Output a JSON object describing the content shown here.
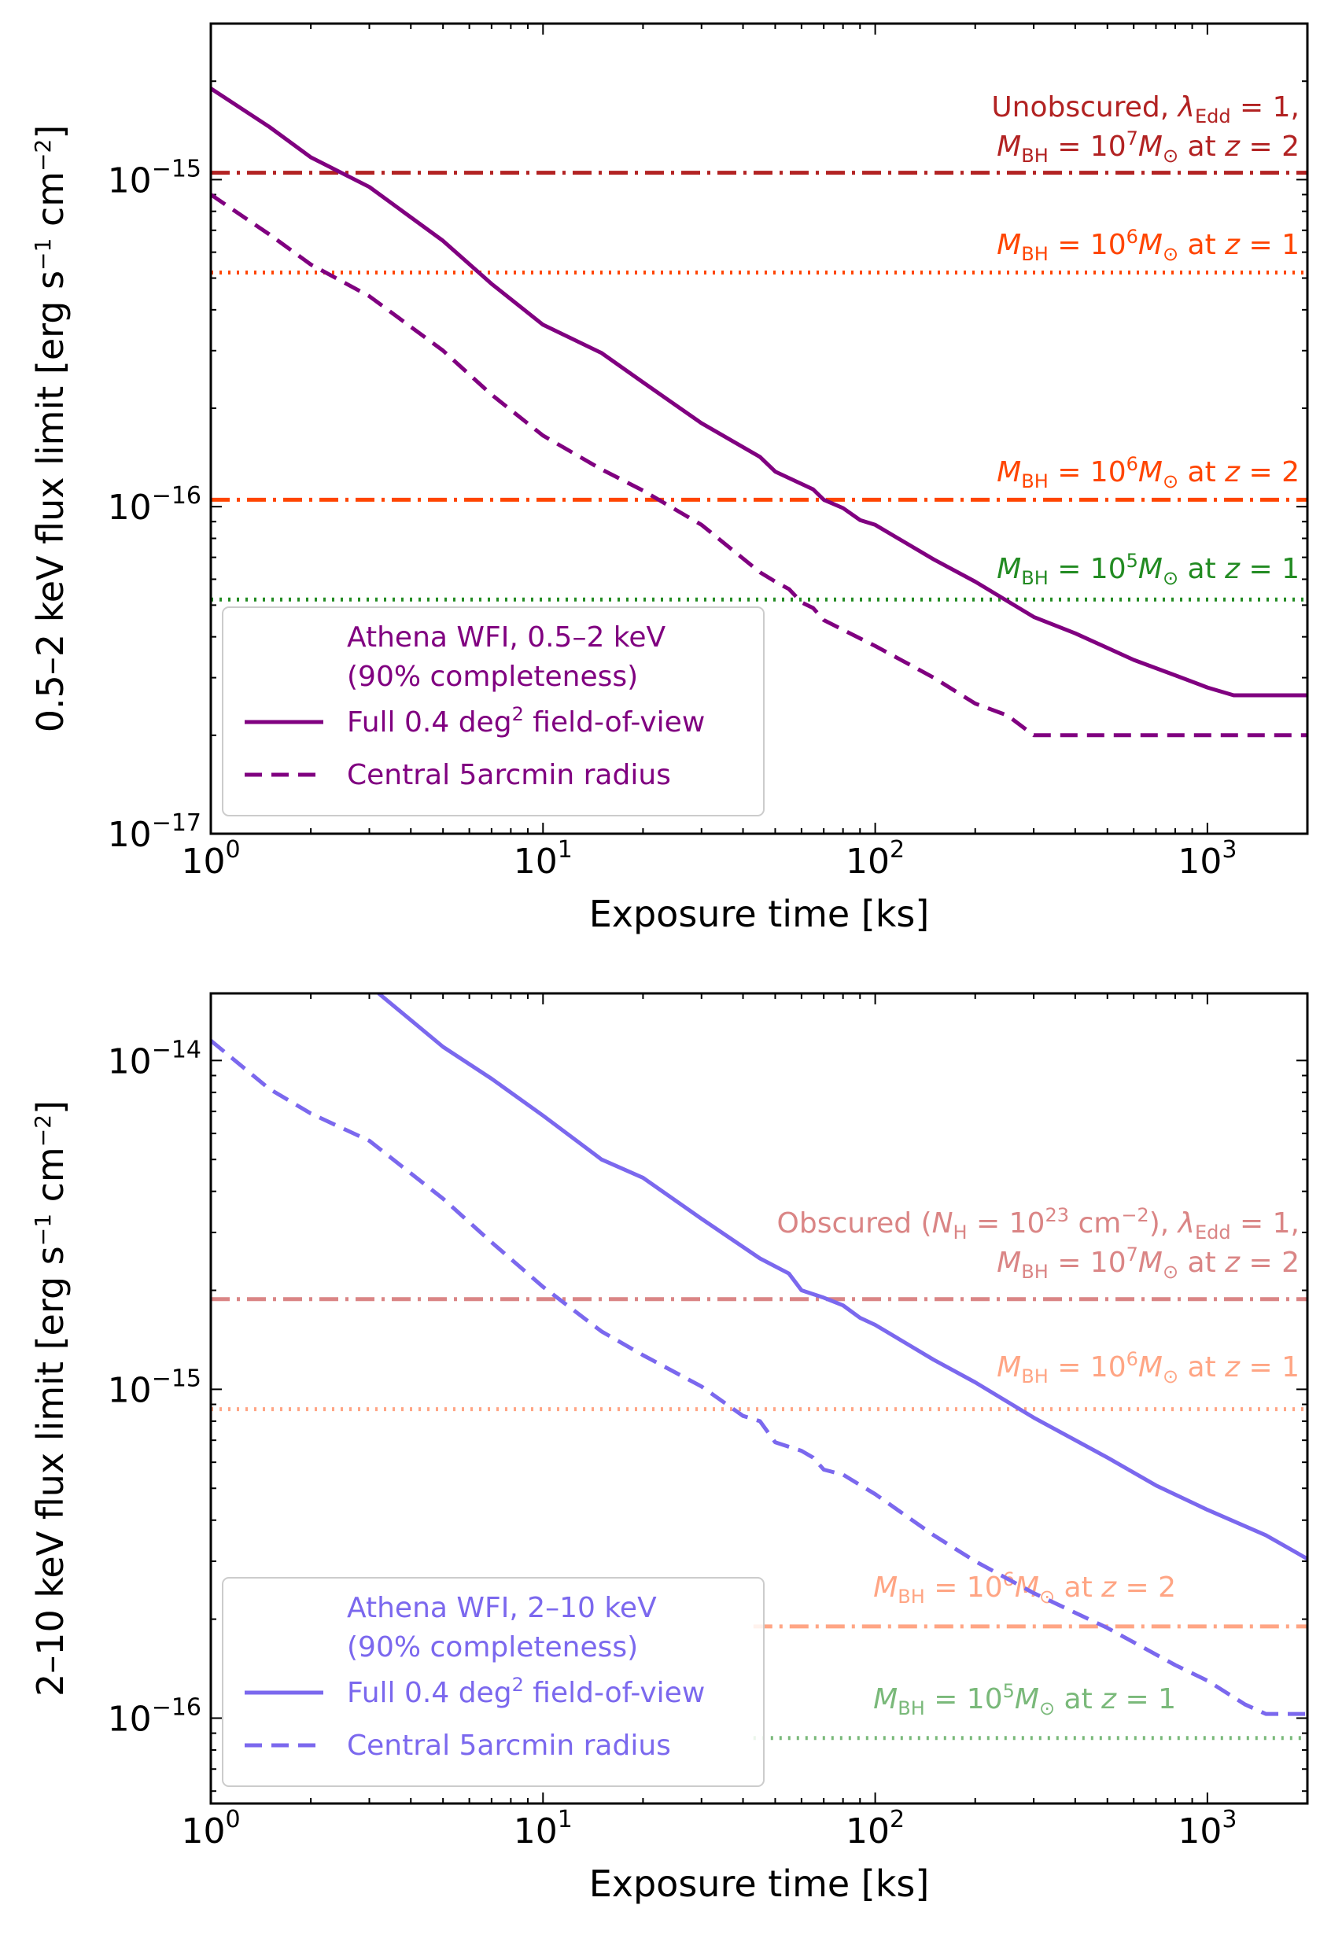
{
  "chart_data": [
    {
      "type": "line",
      "panel": "top",
      "xlabel": "Exposure time [ks]",
      "ylabel": "0.5–2 keV flux limit [erg s⁻¹ cm⁻²]",
      "xscale": "log",
      "yscale": "log",
      "xlim": [
        1,
        2000
      ],
      "ylim": [
        1e-17,
        3e-15
      ],
      "xticks": [
        {
          "value": 1,
          "base": "10",
          "exp": "0"
        },
        {
          "value": 10,
          "base": "10",
          "exp": "1"
        },
        {
          "value": 100,
          "base": "10",
          "exp": "2"
        },
        {
          "value": 1000,
          "base": "10",
          "exp": "3"
        }
      ],
      "yticks": [
        {
          "value": 1e-17,
          "base": "10",
          "exp": "−17"
        },
        {
          "value": 1e-16,
          "base": "10",
          "exp": "−16"
        },
        {
          "value": 1e-15,
          "base": "10",
          "exp": "−15"
        }
      ],
      "series": [
        {
          "name": "Full 0.4 deg² field-of-view",
          "color": "#800080",
          "style": "solid",
          "x": [
            1,
            1.5,
            2,
            3,
            5,
            7,
            10,
            15,
            20,
            30,
            45,
            50,
            65,
            70,
            80,
            90,
            100,
            150,
            200,
            300,
            400,
            600,
            800,
            1000,
            1200,
            1500,
            2000
          ],
          "y": [
            1.9e-15,
            1.45e-15,
            1.17e-15,
            9.5e-16,
            6.5e-16,
            4.8e-16,
            3.6e-16,
            2.95e-16,
            2.4e-16,
            1.8e-16,
            1.42e-16,
            1.28e-16,
            1.13e-16,
            1.05e-16,
            9.9e-17,
            9.1e-17,
            8.8e-17,
            6.9e-17,
            5.9e-17,
            4.6e-17,
            4.1e-17,
            3.4e-17,
            3.05e-17,
            2.8e-17,
            2.65e-17,
            2.65e-17,
            2.65e-17
          ]
        },
        {
          "name": "Central 5arcmin radius",
          "color": "#800080",
          "style": "dashed",
          "x": [
            1,
            1.5,
            2,
            3,
            5,
            7,
            10,
            15,
            20,
            30,
            45,
            50,
            55,
            60,
            65,
            70,
            80,
            100,
            150,
            200,
            250,
            300,
            500,
            1000,
            2000
          ],
          "y": [
            9e-16,
            6.8e-16,
            5.5e-16,
            4.4e-16,
            3e-16,
            2.2e-16,
            1.65e-16,
            1.3e-16,
            1.12e-16,
            8.8e-17,
            6.3e-17,
            5.9e-17,
            5.6e-17,
            5.1e-17,
            4.9e-17,
            4.5e-17,
            4.2e-17,
            3.75e-17,
            3e-17,
            2.5e-17,
            2.3e-17,
            2e-17,
            2e-17,
            2e-17,
            2e-17
          ]
        }
      ],
      "hlines": [
        {
          "y": 1.05e-15,
          "color": "#b22222",
          "style": "dashdot",
          "label_lines": [
            "Unobscured, λEdd = 1,",
            "MBH = 10⁷ M⊙ at z = 2"
          ]
        },
        {
          "y": 5.2e-16,
          "color": "#ff4500",
          "style": "dotted",
          "label_lines": [
            "MBH = 10⁶ M⊙ at z = 1"
          ]
        },
        {
          "y": 1.05e-16,
          "color": "#ff4500",
          "style": "dashdot",
          "label_lines": [
            "MBH = 10⁶ M⊙ at z = 2"
          ]
        },
        {
          "y": 5.2e-17,
          "color": "#228b22",
          "style": "dotted",
          "label_lines": [
            "MBH = 10⁵ M⊙ at z = 1"
          ]
        }
      ],
      "legend": {
        "placement": "lower-left",
        "title_lines": [
          "Athena WFI, 0.5–2 keV",
          "(90% completeness)"
        ],
        "entries": [
          "Full 0.4 deg² field-of-view",
          "Central 5arcmin radius"
        ]
      }
    },
    {
      "type": "line",
      "panel": "bottom",
      "xlabel": "Exposure time [ks]",
      "ylabel": "2–10 keV flux limit [erg s⁻¹ cm⁻²]",
      "xscale": "log",
      "yscale": "log",
      "xlim": [
        1,
        2000
      ],
      "ylim": [
        5.5e-17,
        1.6e-14
      ],
      "xticks": [
        {
          "value": 1,
          "base": "10",
          "exp": "0"
        },
        {
          "value": 10,
          "base": "10",
          "exp": "1"
        },
        {
          "value": 100,
          "base": "10",
          "exp": "2"
        },
        {
          "value": 1000,
          "base": "10",
          "exp": "3"
        }
      ],
      "yticks": [
        {
          "value": 1e-16,
          "base": "10",
          "exp": "−16"
        },
        {
          "value": 1e-15,
          "base": "10",
          "exp": "−15"
        },
        {
          "value": 1e-14,
          "base": "10",
          "exp": "−14"
        }
      ],
      "series": [
        {
          "name": "Full 0.4 deg² field-of-view",
          "color": "#7b68ee",
          "style": "solid",
          "x": [
            3.2,
            5,
            7,
            10,
            15,
            20,
            30,
            45,
            55,
            60,
            70,
            80,
            90,
            100,
            150,
            200,
            300,
            500,
            700,
            1000,
            1500,
            2000
          ],
          "y": [
            1.6e-14,
            1.1e-14,
            8.8e-15,
            6.8e-15,
            5e-15,
            4.4e-15,
            3.3e-15,
            2.5e-15,
            2.25e-15,
            2e-15,
            1.9e-15,
            1.8e-15,
            1.65e-15,
            1.57e-15,
            1.23e-15,
            1.05e-15,
            8.2e-16,
            6.2e-16,
            5.1e-16,
            4.3e-16,
            3.6e-16,
            3.05e-16
          ]
        },
        {
          "name": "Central 5arcmin radius",
          "color": "#7b68ee",
          "style": "dashed",
          "x": [
            1,
            1.5,
            2,
            3,
            5,
            7,
            10,
            15,
            20,
            30,
            40,
            45,
            50,
            60,
            65,
            70,
            80,
            100,
            150,
            200,
            300,
            500,
            800,
            1000,
            1300,
            1500,
            2000
          ],
          "y": [
            1.15e-14,
            8.2e-15,
            6.9e-15,
            5.7e-15,
            3.8e-15,
            2.8e-15,
            2.05e-15,
            1.5e-15,
            1.27e-15,
            1.02e-15,
            8.3e-16,
            8e-16,
            6.9e-16,
            6.5e-16,
            6.2e-16,
            5.7e-16,
            5.5e-16,
            4.8e-16,
            3.6e-16,
            3e-16,
            2.4e-16,
            1.88e-16,
            1.45e-16,
            1.3e-16,
            1.1e-16,
            1.03e-16,
            1.03e-16
          ]
        }
      ],
      "hlines": [
        {
          "y": 1.88e-15,
          "color": "#cd5c5c",
          "style": "dashdot",
          "alpha": 0.75,
          "label_lines": [
            "Obscured (NH = 10²³ cm⁻²), λEdd = 1,",
            "MBH = 10⁷ M⊙ at z = 2"
          ]
        },
        {
          "y": 8.7e-16,
          "color": "#ff7f50",
          "style": "dotted",
          "alpha": 0.7,
          "label_lines": [
            "MBH = 10⁶ M⊙ at z = 1"
          ]
        },
        {
          "y": 1.9e-16,
          "color": "#ff7f50",
          "style": "dashdot",
          "alpha": 0.7,
          "x_start": 43,
          "label_lines": [
            "MBH = 10⁶ M⊙ at z = 2"
          ]
        },
        {
          "y": 8.7e-17,
          "color": "#228b22",
          "style": "dotted",
          "alpha": 0.6,
          "x_start": 43,
          "label_lines": [
            "MBH = 10⁵ M⊙ at z = 1"
          ]
        }
      ],
      "legend": {
        "placement": "lower-left",
        "title_lines": [
          "Athena WFI, 2–10 keV",
          "(90% completeness)"
        ],
        "entries": [
          "Full 0.4 deg² field-of-view",
          "Central 5arcmin radius"
        ]
      }
    }
  ]
}
